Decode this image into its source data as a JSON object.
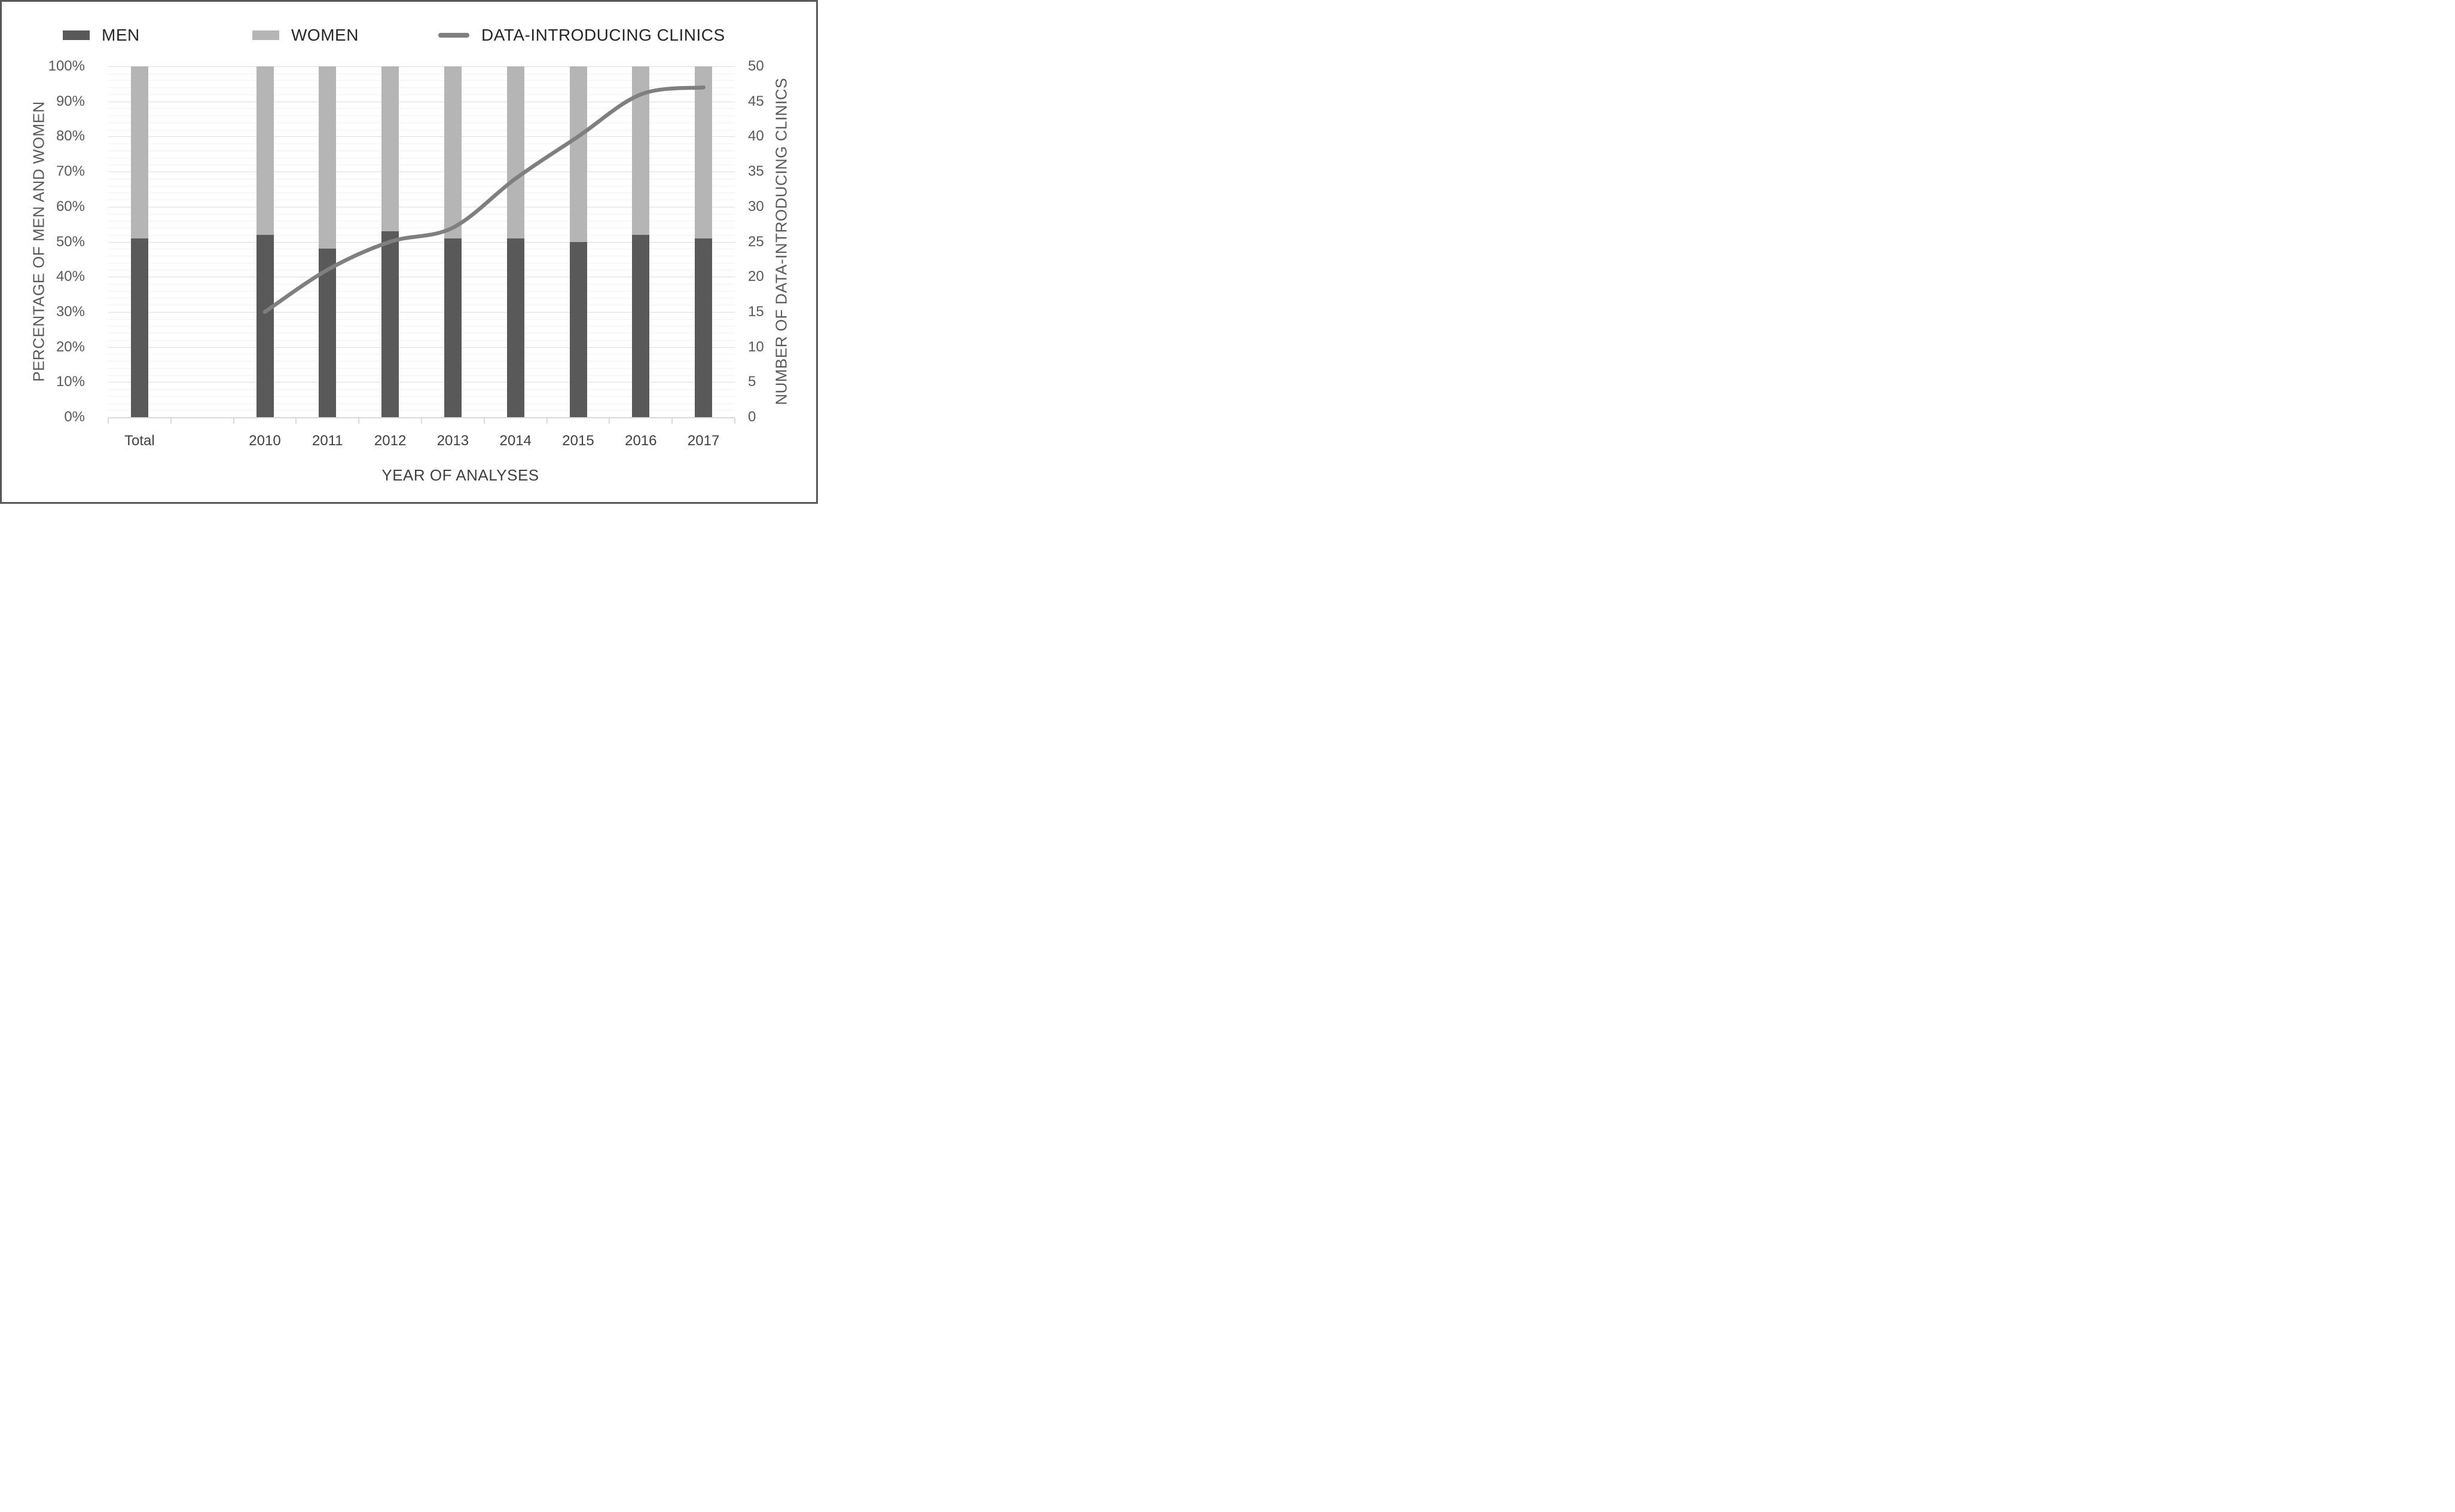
{
  "figure": {
    "background": "#ffffff",
    "border_color": "#595959"
  },
  "legend": {
    "items": [
      {
        "label": "MEN",
        "swatch": "bar",
        "color": "#595959"
      },
      {
        "label": "WOMEN",
        "swatch": "bar",
        "color": "#b5b5b5"
      },
      {
        "label": "DATA-INTRODUCING CLINICS",
        "swatch": "line",
        "color": "#7f7f7f"
      }
    ]
  },
  "chart_data": {
    "type": "bar",
    "subtype": "stacked-100pct-bars-with-line-overlay",
    "categories": [
      "Total",
      "",
      "2010",
      "2011",
      "2012",
      "2013",
      "2014",
      "2015",
      "2016",
      "2017"
    ],
    "series": [
      {
        "name": "MEN",
        "role": "bar",
        "axis": "left",
        "unit": "%",
        "color": "#595959",
        "values": [
          51,
          null,
          52,
          48,
          53,
          51,
          51,
          50,
          52,
          51
        ]
      },
      {
        "name": "WOMEN",
        "role": "bar",
        "axis": "left",
        "unit": "%",
        "color": "#b5b5b5",
        "values": [
          49,
          null,
          48,
          52,
          47,
          49,
          49,
          50,
          48,
          49
        ]
      },
      {
        "name": "DATA-INTRODUCING CLINICS",
        "role": "line",
        "axis": "right",
        "unit": "clinics",
        "color": "#7f7f7f",
        "values": [
          null,
          null,
          15,
          21,
          25,
          27,
          34,
          40,
          46,
          47
        ]
      }
    ],
    "left_axis": {
      "title": "PERCENTAGE OF MEN AND WOMEN",
      "min": 0,
      "max": 100,
      "tick_labels": [
        "0%",
        "10%",
        "20%",
        "30%",
        "40%",
        "50%",
        "60%",
        "70%",
        "80%",
        "90%",
        "100%"
      ]
    },
    "right_axis": {
      "title": "NUMBER OF DATA-INTRODUCING CLINICS",
      "min": 0,
      "max": 50,
      "tick_labels": [
        "0",
        "5",
        "10",
        "15",
        "20",
        "25",
        "30",
        "35",
        "40",
        "45",
        "50"
      ]
    },
    "x_axis": {
      "title": "YEAR OF ANALYSES"
    },
    "grid": {
      "minor_step_left_pct": 2,
      "major_step_left_pct": 10,
      "minor_color": "#f2f2f2",
      "major_color": "#dedede",
      "axis_line_color": "#d9d9d9"
    },
    "legend_position": "top",
    "bar_stack_total_pct": 100
  }
}
